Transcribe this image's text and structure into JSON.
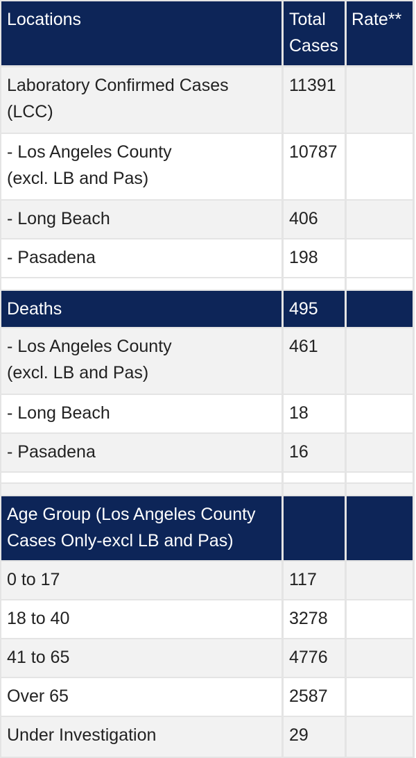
{
  "table": {
    "header": {
      "location": "Locations",
      "total_cases": "Total\nCases",
      "rate": "Rate**"
    },
    "lcc": [
      {
        "location": "Laboratory Confirmed Cases\n(LCC)",
        "total": "11391",
        "rate": ""
      },
      {
        "location": "- Los Angeles County\n(excl. LB and Pas)",
        "total": "10787",
        "rate": ""
      },
      {
        "location": "- Long Beach",
        "total": "406",
        "rate": ""
      },
      {
        "location": "- Pasadena",
        "total": "198",
        "rate": ""
      }
    ],
    "deaths_header": {
      "location": "Deaths",
      "total": "495",
      "rate": ""
    },
    "deaths": [
      {
        "location": "- Los Angeles County\n(excl. LB and Pas)",
        "total": "461",
        "rate": ""
      },
      {
        "location": "- Long Beach",
        "total": "18",
        "rate": ""
      },
      {
        "location": "- Pasadena",
        "total": "16",
        "rate": ""
      }
    ],
    "age_header": {
      "location": "Age Group (Los Angeles County\nCases Only-excl LB and Pas)",
      "total": "",
      "rate": ""
    },
    "age_groups": [
      {
        "location": "0 to 17",
        "total": "117",
        "rate": ""
      },
      {
        "location": "18 to 40",
        "total": "3278",
        "rate": ""
      },
      {
        "location": "41 to 65",
        "total": "4776",
        "rate": ""
      },
      {
        "location": "Over 65",
        "total": "2587",
        "rate": ""
      },
      {
        "location": "Under Investigation",
        "total": "29",
        "rate": ""
      }
    ]
  },
  "colors": {
    "header_bg": "#0d2558",
    "header_text": "#ffffff",
    "row_gray": "#f2f2f2",
    "row_white": "#ffffff",
    "border": "#e4e4e4"
  }
}
